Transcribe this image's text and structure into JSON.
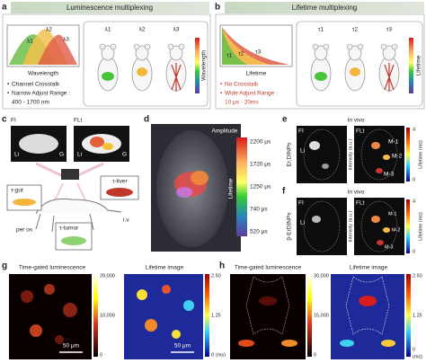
{
  "panel_a": {
    "label": "a",
    "header": "Luminescence multiplexing",
    "peaks": [
      "λ1",
      "λ2",
      "λ3"
    ],
    "axis": "Wavelength",
    "bullets": [
      "Channel Crosstalk",
      "Narrow Adjust Range :",
      "400 - 1700 nm"
    ],
    "mice": [
      "λ1",
      "λ2",
      "λ3"
    ],
    "colorbar": "Wavelength"
  },
  "panel_b": {
    "label": "b",
    "header": "Lifetime multiplexing",
    "curves": [
      "τ1",
      "τ2",
      "τ3"
    ],
    "axis": "Lifetime",
    "bullets": [
      "No Crosstalk",
      "Wide Adjust Range :",
      "10 μs - 20ms"
    ],
    "mice": [
      "τ1",
      "τ2",
      "τ3"
    ],
    "colorbar": "Lifetime"
  },
  "panel_c": {
    "label": "c",
    "images": [
      "FI",
      "FLt"
    ],
    "organs": [
      "Li",
      "G",
      "Li",
      "G"
    ],
    "probes": [
      "τ-gut",
      "τ-liver",
      "τ-tumor"
    ],
    "routes": [
      "per os",
      "i.v."
    ]
  },
  "panel_d": {
    "label": "d",
    "colorbar_title": "Amplitude",
    "colorbar_axis": "Lifetime",
    "ticks": [
      "2200 μs",
      "1720 μs",
      "1250 μs",
      "740 μs",
      "520 μs"
    ]
  },
  "panel_e": {
    "label": "e",
    "title": "In vivo",
    "sample": "Er,DINPs",
    "images": [
      "FI",
      "FLt"
    ],
    "intensity": "Intensity (a.u.)",
    "lifetime": "Lifetime (ms)",
    "ticks": [
      "4",
      "0"
    ],
    "organs": [
      "Li",
      "M-1",
      "M-2",
      "M-3"
    ]
  },
  "panel_f": {
    "label": "f",
    "title": "In vivo",
    "sample": "β-ErDINPs",
    "images": [
      "FI",
      "FLt"
    ],
    "intensity": "Intensity (a.u.)",
    "lifetime": "Lifetime (ms)",
    "ticks": [
      "4",
      "0"
    ],
    "organs": [
      "Li",
      "M-1",
      "M-2",
      "M-3"
    ]
  },
  "panel_g": {
    "label": "g",
    "left_title": "Time-gated luminescence",
    "left_ticks": [
      "20,000",
      "10,000",
      "0"
    ],
    "scale": "50 μm",
    "right_title": "Lifetime image",
    "right_ticks": [
      "2.50",
      "1.25",
      "0"
    ],
    "unit": "(ms)",
    "scale2": "50 μm"
  },
  "panel_h": {
    "label": "h",
    "left_title": "Time-gated luminescence",
    "left_ticks": [
      "30,000",
      "15,000",
      "0"
    ],
    "right_title": "Lifetime image",
    "right_ticks": [
      "2.50",
      "1.25",
      "0"
    ],
    "unit": "(ms)"
  }
}
